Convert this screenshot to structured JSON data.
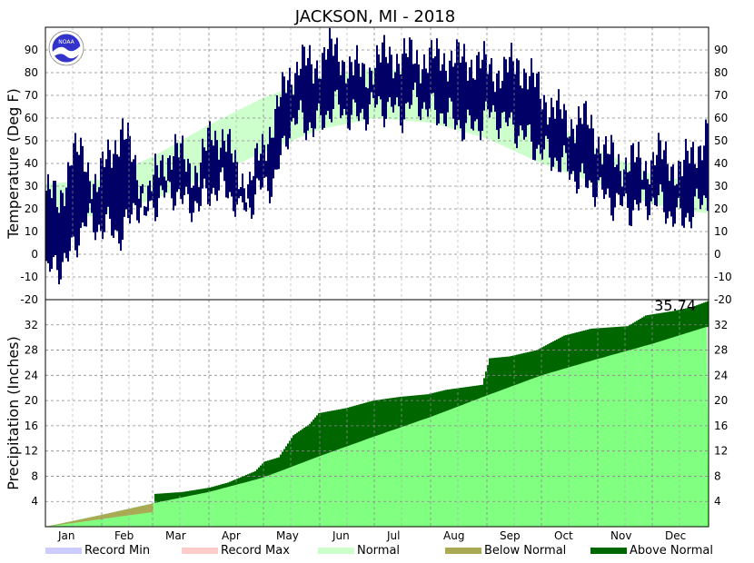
{
  "chart_data": {
    "type": "line",
    "title": "JACKSON, MI - 2018",
    "months": [
      "Jan",
      "Feb",
      "Mar",
      "Apr",
      "May",
      "Jun",
      "Jul",
      "Aug",
      "Sep",
      "Oct",
      "Nov",
      "Dec"
    ],
    "grid": true,
    "temperature": {
      "ylabel": "Temperature (Deg F)",
      "ylim": [
        -20,
        100
      ],
      "yticks": [
        -10,
        0,
        10,
        20,
        30,
        40,
        50,
        60,
        70,
        80,
        90
      ],
      "normal_band_color": "#ccffcc",
      "daily_range_color": "#000066",
      "normal_high_anchors": [
        [
          0,
          31
        ],
        [
          31,
          33
        ],
        [
          59,
          43
        ],
        [
          90,
          57
        ],
        [
          120,
          69
        ],
        [
          151,
          78
        ],
        [
          181,
          82
        ],
        [
          212,
          80
        ],
        [
          243,
          73
        ],
        [
          273,
          60
        ],
        [
          304,
          46
        ],
        [
          334,
          35
        ],
        [
          364,
          31
        ]
      ],
      "normal_low_anchors": [
        [
          0,
          16
        ],
        [
          31,
          17
        ],
        [
          59,
          24
        ],
        [
          90,
          34
        ],
        [
          120,
          45
        ],
        [
          151,
          55
        ],
        [
          181,
          60
        ],
        [
          212,
          58
        ],
        [
          243,
          51
        ],
        [
          273,
          40
        ],
        [
          304,
          31
        ],
        [
          334,
          22
        ],
        [
          364,
          18
        ]
      ],
      "weekly_observed_highs": [
        28,
        22,
        45,
        42,
        30,
        45,
        55,
        38,
        25,
        40,
        45,
        42,
        35,
        55,
        50,
        38,
        30,
        48,
        60,
        78,
        85,
        82,
        90,
        88,
        82,
        80,
        85,
        88,
        86,
        88,
        84,
        88,
        85,
        86,
        84,
        82,
        80,
        85,
        78,
        70,
        64,
        58,
        60,
        55,
        45,
        40,
        42,
        38,
        45,
        40,
        38,
        45,
        55
      ],
      "weekly_observed_lows": [
        -8,
        -5,
        0,
        15,
        12,
        12,
        8,
        22,
        20,
        25,
        28,
        22,
        22,
        28,
        30,
        22,
        22,
        30,
        32,
        55,
        60,
        55,
        62,
        65,
        60,
        62,
        66,
        64,
        62,
        68,
        64,
        62,
        60,
        55,
        58,
        62,
        58,
        55,
        50,
        45,
        42,
        38,
        32,
        30,
        25,
        22,
        20,
        22,
        24,
        18,
        15,
        20,
        25
      ]
    },
    "precipitation": {
      "ylabel": "Precipitation (Inches)",
      "ylim": [
        0,
        36
      ],
      "yticks": [
        4,
        8,
        12,
        16,
        20,
        24,
        28,
        32
      ],
      "ytick_top": -20,
      "ytotal_label": "35.74",
      "total": 35.74,
      "normal_color": "#80ff80",
      "above_color": "#006600",
      "below_color": "#aaaa55",
      "normal_anchors": [
        [
          0,
          0
        ],
        [
          31,
          1.9
        ],
        [
          59,
          3.7
        ],
        [
          90,
          5.5
        ],
        [
          120,
          7.8
        ],
        [
          151,
          11.2
        ],
        [
          181,
          14.3
        ],
        [
          212,
          17.4
        ],
        [
          243,
          20.8
        ],
        [
          273,
          24.0
        ],
        [
          304,
          26.6
        ],
        [
          334,
          29.0
        ],
        [
          364,
          31.7
        ]
      ],
      "observed_anchors": [
        [
          0,
          0
        ],
        [
          15,
          0.6
        ],
        [
          30,
          1.2
        ],
        [
          45,
          1.8
        ],
        [
          58,
          2.3
        ],
        [
          60,
          5.2
        ],
        [
          75,
          5.5
        ],
        [
          90,
          6.2
        ],
        [
          100,
          7.0
        ],
        [
          115,
          8.8
        ],
        [
          120,
          10.3
        ],
        [
          128,
          11.0
        ],
        [
          136,
          14.5
        ],
        [
          145,
          16.3
        ],
        [
          150,
          18.0
        ],
        [
          165,
          18.8
        ],
        [
          180,
          20.0
        ],
        [
          195,
          20.6
        ],
        [
          210,
          21.0
        ],
        [
          220,
          21.7
        ],
        [
          240,
          22.5
        ],
        [
          244,
          26.7
        ],
        [
          255,
          27.0
        ],
        [
          270,
          28.0
        ],
        [
          285,
          30.3
        ],
        [
          300,
          31.4
        ],
        [
          320,
          31.8
        ],
        [
          330,
          33.5
        ],
        [
          345,
          34.2
        ],
        [
          355,
          34.8
        ],
        [
          364,
          35.74
        ]
      ]
    },
    "legend": [
      {
        "label": "Record Min",
        "color": "#ccccff"
      },
      {
        "label": "Record Max",
        "color": "#ffcccc"
      },
      {
        "label": "Normal",
        "color": "#ccffcc"
      },
      {
        "label": "Below Normal",
        "color": "#aaaa55"
      },
      {
        "label": "Above Normal",
        "color": "#006600"
      }
    ],
    "logo_text": "NOAA"
  }
}
